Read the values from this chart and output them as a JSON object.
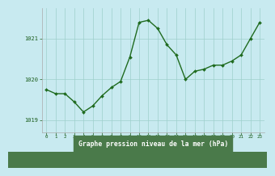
{
  "x": [
    0,
    1,
    2,
    3,
    4,
    5,
    6,
    7,
    8,
    9,
    10,
    11,
    12,
    13,
    14,
    15,
    16,
    17,
    18,
    19,
    20,
    21,
    22,
    23
  ],
  "y": [
    1019.75,
    1019.65,
    1019.65,
    1019.45,
    1019.2,
    1019.35,
    1019.6,
    1019.8,
    1019.95,
    1020.55,
    1021.4,
    1021.45,
    1021.25,
    1020.85,
    1020.6,
    1020.0,
    1020.2,
    1020.25,
    1020.35,
    1020.35,
    1020.45,
    1020.6,
    1021.0,
    1021.4
  ],
  "line_color": "#1f6b1f",
  "marker_color": "#1f6b1f",
  "bg_color": "#c8eaf0",
  "plot_bg_color": "#c8eaf0",
  "grid_color": "#9dcfcc",
  "xlabel": "Graphe pression niveau de la mer (hPa)",
  "xlabel_color": "#1a5c1a",
  "tick_color": "#1a5c1a",
  "ytick_labels": [
    "1019",
    "1020",
    "1021"
  ],
  "ytick_values": [
    1019,
    1020,
    1021
  ],
  "ylim": [
    1018.7,
    1021.75
  ],
  "xlim": [
    -0.5,
    23.5
  ],
  "bottom_bg": "#4a7a4a"
}
